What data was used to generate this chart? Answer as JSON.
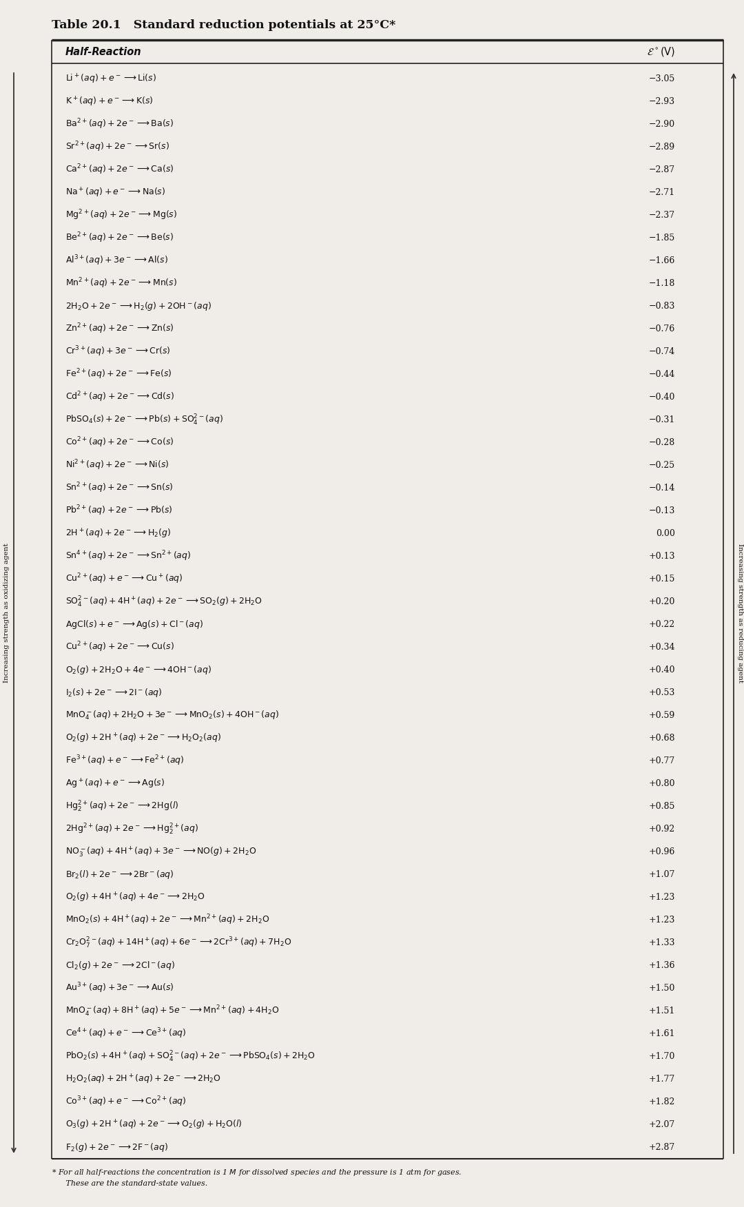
{
  "title": "Table 20.1   Standard reduction potentials at 25°C*",
  "col1_header": "Half-Reaction",
  "col2_header": "$\\mathit{\\mathcal{E}}^\\circ$(V)",
  "footnote1": "* For all half-reactions the concentration is 1 $M$ for dissolved species and the pressure is 1 atm for gases.",
  "footnote2": "   These are the standard-state values.",
  "left_arrow_label": "Increasing strength as oxidizing agent",
  "right_arrow_label": "Increasing strength as reducing agent",
  "rows": [
    [
      "$\\mathrm{Li^+(\\mathit{aq}) + \\mathit{e}^- \\longrightarrow Li(\\mathit{s})}$",
      "−3.05"
    ],
    [
      "$\\mathrm{K^+(\\mathit{aq}) + \\mathit{e}^- \\longrightarrow K(\\mathit{s})}$",
      "−2.93"
    ],
    [
      "$\\mathrm{Ba^{2+}(\\mathit{aq}) + 2\\mathit{e}^- \\longrightarrow Ba(\\mathit{s})}$",
      "−2.90"
    ],
    [
      "$\\mathrm{Sr^{2+}(\\mathit{aq}) + 2\\mathit{e}^- \\longrightarrow Sr(\\mathit{s})}$",
      "−2.89"
    ],
    [
      "$\\mathrm{Ca^{2+}(\\mathit{aq}) + 2\\mathit{e}^- \\longrightarrow Ca(\\mathit{s})}$",
      "−2.87"
    ],
    [
      "$\\mathrm{Na^+(\\mathit{aq}) + \\mathit{e}^- \\longrightarrow Na(\\mathit{s})}$",
      "−2.71"
    ],
    [
      "$\\mathrm{Mg^{2+}(\\mathit{aq}) + 2\\mathit{e}^- \\longrightarrow Mg(\\mathit{s})}$",
      "−2.37"
    ],
    [
      "$\\mathrm{Be^{2+}(\\mathit{aq}) + 2\\mathit{e}^- \\longrightarrow Be(\\mathit{s})}$",
      "−1.85"
    ],
    [
      "$\\mathrm{Al^{3+}(\\mathit{aq}) + 3\\mathit{e}^- \\longrightarrow Al(\\mathit{s})}$",
      "−1.66"
    ],
    [
      "$\\mathrm{Mn^{2+}(\\mathit{aq}) + 2\\mathit{e}^- \\longrightarrow Mn(\\mathit{s})}$",
      "−1.18"
    ],
    [
      "$\\mathrm{2H_2O + 2\\mathit{e}^- \\longrightarrow H_2(\\mathit{g}) + 2OH^-(\\mathit{aq})}$",
      "−0.83"
    ],
    [
      "$\\mathrm{Zn^{2+}(\\mathit{aq}) + 2\\mathit{e}^- \\longrightarrow Zn(\\mathit{s})}$",
      "−0.76"
    ],
    [
      "$\\mathrm{Cr^{3+}(\\mathit{aq}) + 3\\mathit{e}^- \\longrightarrow Cr(\\mathit{s})}$",
      "−0.74"
    ],
    [
      "$\\mathrm{Fe^{2+}(\\mathit{aq}) + 2\\mathit{e}^- \\longrightarrow Fe(\\mathit{s})}$",
      "−0.44"
    ],
    [
      "$\\mathrm{Cd^{2+}(\\mathit{aq}) + 2\\mathit{e}^- \\longrightarrow Cd(\\mathit{s})}$",
      "−0.40"
    ],
    [
      "$\\mathrm{PbSO_4(\\mathit{s}) + 2\\mathit{e}^- \\longrightarrow Pb(\\mathit{s}) + SO_4^{2-}(\\mathit{aq})}$",
      "−0.31"
    ],
    [
      "$\\mathrm{Co^{2+}(\\mathit{aq}) + 2\\mathit{e}^- \\longrightarrow Co(\\mathit{s})}$",
      "−0.28"
    ],
    [
      "$\\mathrm{Ni^{2+}(\\mathit{aq}) + 2\\mathit{e}^- \\longrightarrow Ni(\\mathit{s})}$",
      "−0.25"
    ],
    [
      "$\\mathrm{Sn^{2+}(\\mathit{aq}) + 2\\mathit{e}^- \\longrightarrow Sn(\\mathit{s})}$",
      "−0.14"
    ],
    [
      "$\\mathrm{Pb^{2+}(\\mathit{aq}) + 2\\mathit{e}^- \\longrightarrow Pb(\\mathit{s})}$",
      "−0.13"
    ],
    [
      "$\\mathrm{2H^+(\\mathit{aq}) + 2\\mathit{e}^- \\longrightarrow H_2(\\mathit{g})}$",
      "0.00"
    ],
    [
      "$\\mathrm{Sn^{4+}(\\mathit{aq}) + 2\\mathit{e}^- \\longrightarrow Sn^{2+}(\\mathit{aq})}$",
      "+0.13"
    ],
    [
      "$\\mathrm{Cu^{2+}(\\mathit{aq}) + \\mathit{e}^- \\longrightarrow Cu^+(\\mathit{aq})}$",
      "+0.15"
    ],
    [
      "$\\mathrm{SO_4^{2-}(\\mathit{aq}) + 4H^+(\\mathit{aq}) + 2\\mathit{e}^- \\longrightarrow SO_2(\\mathit{g}) + 2H_2O}$",
      "+0.20"
    ],
    [
      "$\\mathrm{AgCl(\\mathit{s}) + \\mathit{e}^- \\longrightarrow Ag(\\mathit{s}) + Cl^-(\\mathit{aq})}$",
      "+0.22"
    ],
    [
      "$\\mathrm{Cu^{2+}(\\mathit{aq}) + 2\\mathit{e}^- \\longrightarrow Cu(\\mathit{s})}$",
      "+0.34"
    ],
    [
      "$\\mathrm{O_2(\\mathit{g}) + 2H_2O + 4\\mathit{e}^- \\longrightarrow 4OH^-(\\mathit{aq})}$",
      "+0.40"
    ],
    [
      "$\\mathrm{I_2(\\mathit{s}) + 2\\mathit{e}^- \\longrightarrow 2I^-(\\mathit{aq})}$",
      "+0.53"
    ],
    [
      "$\\mathrm{MnO_4^-(\\mathit{aq}) + 2H_2O + 3\\mathit{e}^- \\longrightarrow MnO_2(\\mathit{s}) + 4OH^-(\\mathit{aq})}$",
      "+0.59"
    ],
    [
      "$\\mathrm{O_2(\\mathit{g}) + 2H^+(\\mathit{aq}) + 2\\mathit{e}^- \\longrightarrow H_2O_2(\\mathit{aq})}$",
      "+0.68"
    ],
    [
      "$\\mathrm{Fe^{3+}(\\mathit{aq}) + \\mathit{e}^- \\longrightarrow Fe^{2+}(\\mathit{aq})}$",
      "+0.77"
    ],
    [
      "$\\mathrm{Ag^+(\\mathit{aq}) + \\mathit{e}^- \\longrightarrow Ag(\\mathit{s})}$",
      "+0.80"
    ],
    [
      "$\\mathrm{Hg_2^{2+}(\\mathit{aq}) + 2\\mathit{e}^- \\longrightarrow 2Hg(\\mathit{l})}$",
      "+0.85"
    ],
    [
      "$\\mathrm{2Hg^{2+}(\\mathit{aq}) + 2\\mathit{e}^- \\longrightarrow Hg_2^{2+}(\\mathit{aq})}$",
      "+0.92"
    ],
    [
      "$\\mathrm{NO_3^-(\\mathit{aq}) + 4H^+(\\mathit{aq}) + 3\\mathit{e}^- \\longrightarrow NO(\\mathit{g}) + 2H_2O}$",
      "+0.96"
    ],
    [
      "$\\mathrm{Br_2(\\mathit{l}) + 2\\mathit{e}^- \\longrightarrow 2Br^-(\\mathit{aq})}$",
      "+1.07"
    ],
    [
      "$\\mathrm{O_2(\\mathit{g}) + 4H^+(\\mathit{aq}) + 4\\mathit{e}^- \\longrightarrow 2H_2O}$",
      "+1.23"
    ],
    [
      "$\\mathrm{MnO_2(\\mathit{s}) + 4H^+(\\mathit{aq}) + 2\\mathit{e}^- \\longrightarrow Mn^{2+}(\\mathit{aq}) + 2H_2O}$",
      "+1.23"
    ],
    [
      "$\\mathrm{Cr_2O_7^{2-}(\\mathit{aq}) + 14H^+(\\mathit{aq}) + 6\\mathit{e}^- \\longrightarrow 2Cr^{3+}(\\mathit{aq}) + 7H_2O}$",
      "+1.33"
    ],
    [
      "$\\mathrm{Cl_2(\\mathit{g}) + 2\\mathit{e}^- \\longrightarrow 2Cl^-(\\mathit{aq})}$",
      "+1.36"
    ],
    [
      "$\\mathrm{Au^{3+}(\\mathit{aq}) + 3\\mathit{e}^- \\longrightarrow Au(\\mathit{s})}$",
      "+1.50"
    ],
    [
      "$\\mathrm{MnO_4^-(\\mathit{aq}) + 8H^+(\\mathit{aq}) + 5\\mathit{e}^- \\longrightarrow Mn^{2+}(\\mathit{aq}) + 4H_2O}$",
      "+1.51"
    ],
    [
      "$\\mathrm{Ce^{4+}(\\mathit{aq}) + \\mathit{e}^- \\longrightarrow Ce^{3+}(\\mathit{aq})}$",
      "+1.61"
    ],
    [
      "$\\mathrm{PbO_2(\\mathit{s}) + 4H^+(\\mathit{aq}) + SO_4^{2-}(\\mathit{aq}) + 2\\mathit{e}^- \\longrightarrow PbSO_4(\\mathit{s}) + 2H_2O}$",
      "+1.70"
    ],
    [
      "$\\mathrm{H_2O_2(\\mathit{aq}) + 2H^+(\\mathit{aq}) + 2\\mathit{e}^- \\longrightarrow 2H_2O}$",
      "+1.77"
    ],
    [
      "$\\mathrm{Co^{3+}(\\mathit{aq}) + \\mathit{e}^- \\longrightarrow Co^{2+}(\\mathit{aq})}$",
      "+1.82"
    ],
    [
      "$\\mathrm{O_3(\\mathit{g}) + 2H^+(\\mathit{aq}) + 2\\mathit{e}^- \\longrightarrow O_2(\\mathit{g}) + H_2O(\\mathit{l})}$",
      "+2.07"
    ],
    [
      "$\\mathrm{F_2(\\mathit{g}) + 2\\mathit{e}^- \\longrightarrow 2F^-(\\mathit{aq})}$",
      "+2.87"
    ]
  ],
  "bg_color": "#f0ede8",
  "text_color": "#111111",
  "font_size": 9.0,
  "title_font_size": 12.5
}
